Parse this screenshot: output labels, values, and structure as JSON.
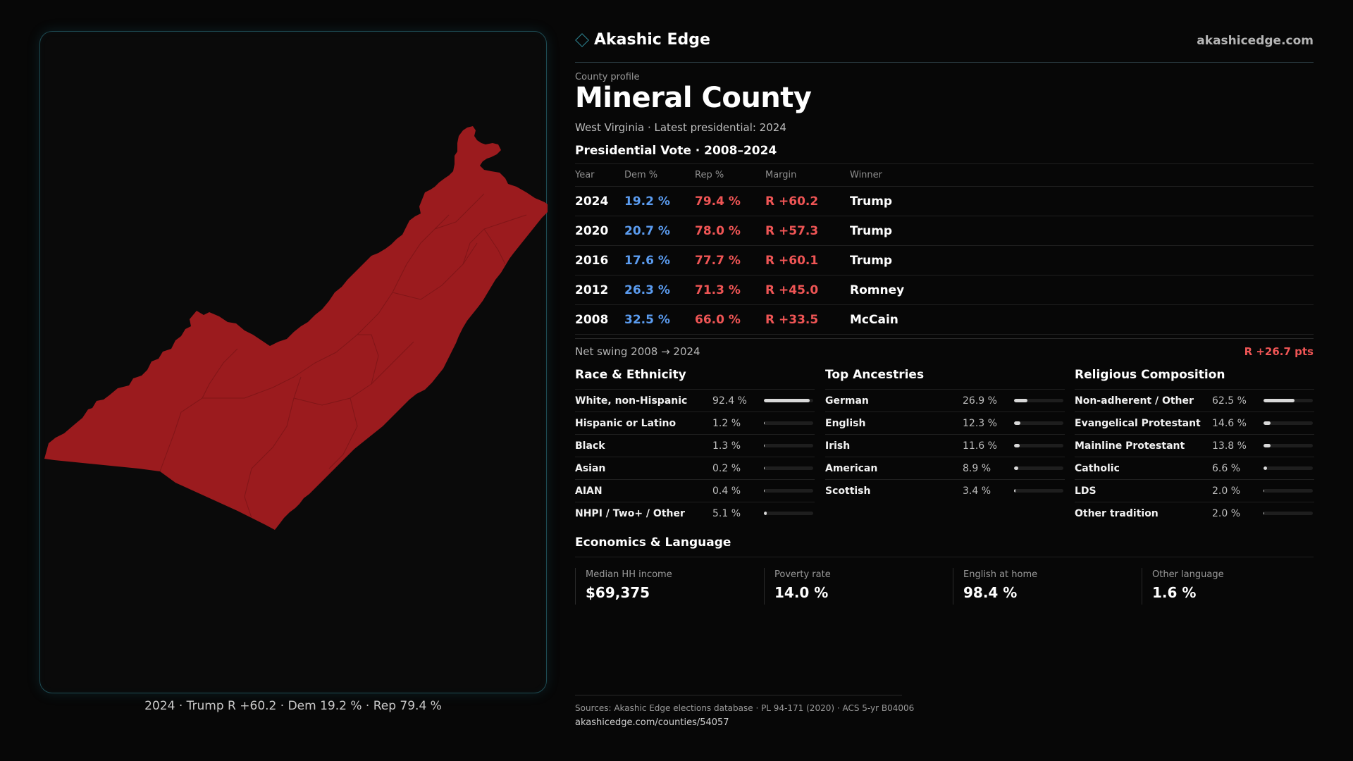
{
  "brand": {
    "name": "Akashic Edge",
    "site": "akashicedge.com",
    "icon": "diamond-icon"
  },
  "county": {
    "kicker": "County profile",
    "name": "Mineral County",
    "subtitle": "West Virginia · Latest presidential: 2024"
  },
  "map": {
    "caption": "2024 · Trump R +60.2 · Dem 19.2 % · Rep 79.4 %",
    "fill_color": "#9b1b1e"
  },
  "vote": {
    "heading": "Presidential Vote · 2008–2024",
    "headers": {
      "year": "Year",
      "dem": "Dem %",
      "rep": "Rep %",
      "margin": "Margin",
      "winner": "Winner"
    },
    "rows": [
      {
        "year": "2024",
        "dem": "19.2 %",
        "rep": "79.4 %",
        "margin": "R +60.2",
        "winner": "Trump"
      },
      {
        "year": "2020",
        "dem": "20.7 %",
        "rep": "78.0 %",
        "margin": "R +57.3",
        "winner": "Trump"
      },
      {
        "year": "2016",
        "dem": "17.6 %",
        "rep": "77.7 %",
        "margin": "R +60.1",
        "winner": "Trump"
      },
      {
        "year": "2012",
        "dem": "26.3 %",
        "rep": "71.3 %",
        "margin": "R +45.0",
        "winner": "Romney"
      },
      {
        "year": "2008",
        "dem": "32.5 %",
        "rep": "66.0 %",
        "margin": "R +33.5",
        "winner": "McCain"
      }
    ],
    "swing_label": "Net swing 2008 → 2024",
    "swing_value": "R +26.7 pts",
    "colors": {
      "dem": "#5b9cf0",
      "rep": "#ef5555"
    }
  },
  "race": {
    "title": "Race & Ethnicity",
    "items": [
      {
        "label": "White, non-Hispanic",
        "pct": "92.4 %",
        "value": 92.4
      },
      {
        "label": "Hispanic or Latino",
        "pct": "1.2 %",
        "value": 1.2
      },
      {
        "label": "Black",
        "pct": "1.3 %",
        "value": 1.3
      },
      {
        "label": "Asian",
        "pct": "0.2 %",
        "value": 0.2
      },
      {
        "label": "AIAN",
        "pct": "0.4 %",
        "value": 0.4
      },
      {
        "label": "NHPI / Two+ / Other",
        "pct": "5.1 %",
        "value": 5.1
      }
    ]
  },
  "ancestry": {
    "title": "Top Ancestries",
    "items": [
      {
        "label": "German",
        "pct": "26.9 %",
        "value": 26.9
      },
      {
        "label": "English",
        "pct": "12.3 %",
        "value": 12.3
      },
      {
        "label": "Irish",
        "pct": "11.6 %",
        "value": 11.6
      },
      {
        "label": "American",
        "pct": "8.9 %",
        "value": 8.9
      },
      {
        "label": "Scottish",
        "pct": "3.4 %",
        "value": 3.4
      }
    ]
  },
  "religion": {
    "title": "Religious Composition",
    "items": [
      {
        "label": "Non-adherent / Other",
        "pct": "62.5 %",
        "value": 62.5
      },
      {
        "label": "Evangelical Protestant",
        "pct": "14.6 %",
        "value": 14.6
      },
      {
        "label": "Mainline Protestant",
        "pct": "13.8 %",
        "value": 13.8
      },
      {
        "label": "Catholic",
        "pct": "6.6 %",
        "value": 6.6
      },
      {
        "label": "LDS",
        "pct": "2.0 %",
        "value": 2.0
      },
      {
        "label": "Other tradition",
        "pct": "2.0 %",
        "value": 2.0
      }
    ]
  },
  "econ": {
    "title": "Economics & Language",
    "items": [
      {
        "label": "Median HH income",
        "value": "$69,375"
      },
      {
        "label": "Poverty rate",
        "value": "14.0 %"
      },
      {
        "label": "English at home",
        "value": "98.4 %"
      },
      {
        "label": "Other language",
        "value": "1.6 %"
      }
    ]
  },
  "footer": {
    "sources": "Sources: Akashic Edge elections database · PL 94-171 (2020) · ACS 5-yr B04006",
    "url": "akashicedge.com/counties/54057"
  }
}
